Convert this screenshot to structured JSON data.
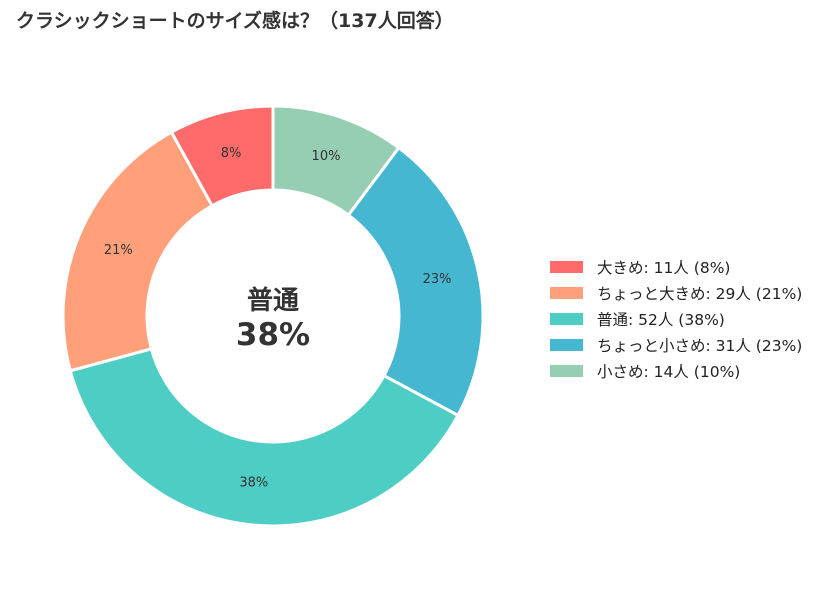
{
  "chart_data": {
    "type": "pie",
    "title": "クラシックショートのサイズ感は？（137人回答）",
    "center": {
      "label": "普通",
      "value": "38%"
    },
    "categories": [
      "大きめ",
      "ちょっと大きめ",
      "普通",
      "ちょっと小さめ",
      "小さめ"
    ],
    "values": [
      11,
      29,
      52,
      31,
      14
    ],
    "percent_labels": [
      "8%",
      "21%",
      "38%",
      "23%",
      "10%"
    ],
    "legend_labels": [
      "大きめ:  11人 (8%)",
      "ちょっと大きめ:  29人 (21%)",
      "普通:  52人 (38%)",
      "ちょっと小さめ:  31人 (23%)",
      "小さめ:  14人 (10%)"
    ],
    "colors": [
      "#FF6B6B",
      "#FFA07A",
      "#4ECDC4",
      "#45B7D1",
      "#96CEB4"
    ],
    "slice_order_clockwise_from_top": [
      4,
      3,
      2,
      1,
      0
    ],
    "donut": true,
    "legend_position": "right"
  }
}
